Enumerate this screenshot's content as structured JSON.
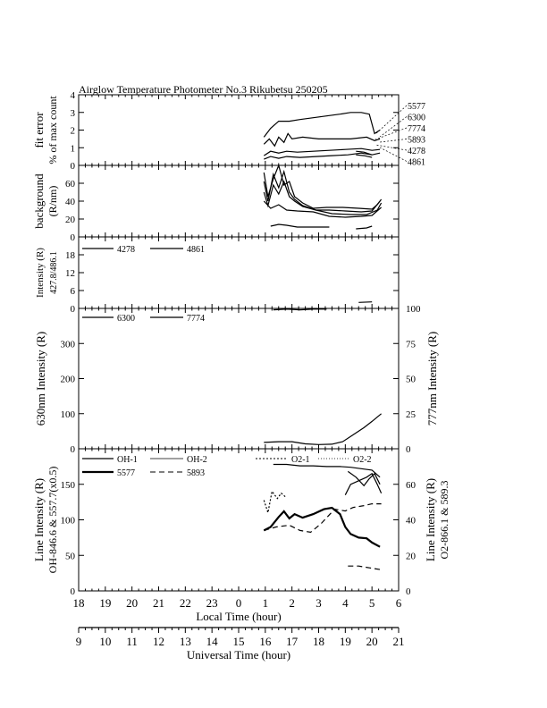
{
  "title": "Airglow Temperature Photometer No.3  Rikubetsu    250205",
  "x_local": {
    "label": "Local Time (hour)",
    "ticks": [
      "18",
      "19",
      "20",
      "21",
      "22",
      "23",
      "0",
      "1",
      "2",
      "3",
      "4",
      "5",
      "6"
    ]
  },
  "x_ut": {
    "label": "Universal Time (hour)",
    "ticks": [
      "9",
      "10",
      "11",
      "12",
      "13",
      "14",
      "15",
      "16",
      "17",
      "18",
      "19",
      "20",
      "21"
    ]
  },
  "chart_data": [
    {
      "id": "fit_error",
      "type": "line",
      "ylabel": "fit error",
      "ylabel2": "% of max count",
      "ylim": [
        0,
        4
      ],
      "yticks": [
        0,
        1,
        2,
        3,
        4
      ],
      "x_units": "Local Time (hour, 0-6 = 24-30)",
      "legend": [
        "5577",
        "6300",
        "7774",
        "5893",
        "4278",
        "4861"
      ],
      "series": [
        {
          "name": "5577",
          "points": [
            [
              0.95,
              1.6
            ],
            [
              1.2,
              2.1
            ],
            [
              1.5,
              2.5
            ],
            [
              1.9,
              2.5
            ],
            [
              2.3,
              2.6
            ],
            [
              2.8,
              2.7
            ],
            [
              3.3,
              2.8
            ],
            [
              3.8,
              2.9
            ],
            [
              4.2,
              3.0
            ],
            [
              4.6,
              3.0
            ],
            [
              4.9,
              2.9
            ],
            [
              5.1,
              1.8
            ],
            [
              5.3,
              2.0
            ]
          ]
        },
        {
          "name": "6300",
          "points": [
            [
              0.95,
              1.2
            ],
            [
              1.15,
              1.5
            ],
            [
              1.35,
              1.1
            ],
            [
              1.5,
              1.6
            ],
            [
              1.7,
              1.3
            ],
            [
              1.85,
              1.8
            ],
            [
              2.0,
              1.5
            ],
            [
              2.4,
              1.6
            ],
            [
              3.0,
              1.5
            ],
            [
              3.6,
              1.5
            ],
            [
              4.2,
              1.5
            ],
            [
              4.8,
              1.6
            ],
            [
              5.1,
              1.4
            ],
            [
              5.3,
              1.5
            ]
          ]
        },
        {
          "name": "7774",
          "points": [
            [
              0.95,
              0.55
            ],
            [
              1.2,
              0.8
            ],
            [
              1.5,
              0.7
            ],
            [
              1.8,
              0.8
            ],
            [
              2.2,
              0.75
            ],
            [
              2.8,
              0.8
            ],
            [
              3.4,
              0.85
            ],
            [
              4.0,
              0.9
            ],
            [
              4.6,
              0.95
            ],
            [
              5.0,
              0.85
            ],
            [
              5.3,
              0.9
            ]
          ]
        },
        {
          "name": "5893",
          "points": [
            [
              0.95,
              0.35
            ],
            [
              1.2,
              0.5
            ],
            [
              1.5,
              0.4
            ],
            [
              1.8,
              0.5
            ],
            [
              2.3,
              0.45
            ],
            [
              2.9,
              0.5
            ],
            [
              3.5,
              0.55
            ],
            [
              4.1,
              0.6
            ],
            [
              4.6,
              0.7
            ],
            [
              5.0,
              0.6
            ],
            [
              5.3,
              0.7
            ]
          ]
        },
        {
          "name": "4278",
          "points": [
            [
              4.4,
              0.8
            ],
            [
              4.7,
              0.75
            ],
            [
              5.0,
              0.6
            ]
          ]
        },
        {
          "name": "4861",
          "points": [
            [
              4.4,
              0.6
            ],
            [
              4.7,
              0.55
            ],
            [
              5.0,
              0.45
            ]
          ]
        }
      ]
    },
    {
      "id": "background",
      "type": "line",
      "ylabel": "background",
      "ylabel2": "(R/nm)",
      "ylim": [
        0,
        80
      ],
      "yticks": [
        0,
        20,
        40,
        60
      ],
      "series": [
        {
          "name": "5577",
          "points": [
            [
              0.95,
              72
            ],
            [
              1.1,
              45
            ],
            [
              1.3,
              65
            ],
            [
              1.5,
              80
            ],
            [
              1.7,
              58
            ],
            [
              1.9,
              62
            ],
            [
              2.1,
              45
            ],
            [
              2.4,
              38
            ],
            [
              2.8,
              32
            ],
            [
              3.3,
              33
            ],
            [
              3.9,
              33
            ],
            [
              4.5,
              32
            ],
            [
              5.0,
              31
            ],
            [
              5.2,
              36
            ],
            [
              5.35,
              42
            ]
          ]
        },
        {
          "name": "6300",
          "points": [
            [
              0.95,
              62
            ],
            [
              1.1,
              40
            ],
            [
              1.3,
              70
            ],
            [
              1.5,
              55
            ],
            [
              1.7,
              73
            ],
            [
              1.9,
              50
            ],
            [
              2.1,
              42
            ],
            [
              2.4,
              35
            ],
            [
              2.9,
              30
            ],
            [
              3.4,
              30
            ],
            [
              4.0,
              29
            ],
            [
              4.6,
              28
            ],
            [
              5.0,
              29
            ],
            [
              5.3,
              40
            ]
          ]
        },
        {
          "name": "7774",
          "points": [
            [
              0.95,
              50
            ],
            [
              1.1,
              35
            ],
            [
              1.3,
              58
            ],
            [
              1.5,
              48
            ],
            [
              1.7,
              62
            ],
            [
              1.9,
              45
            ],
            [
              2.1,
              40
            ],
            [
              2.4,
              34
            ],
            [
              2.9,
              30
            ],
            [
              3.5,
              26
            ],
            [
              4.2,
              25
            ],
            [
              4.8,
              25
            ],
            [
              5.2,
              30
            ],
            [
              5.35,
              38
            ]
          ]
        },
        {
          "name": "5893",
          "points": [
            [
              0.95,
              40
            ],
            [
              1.2,
              32
            ],
            [
              1.5,
              36
            ],
            [
              1.8,
              30
            ],
            [
              2.2,
              29
            ],
            [
              2.8,
              28
            ],
            [
              3.4,
              23
            ],
            [
              4.0,
              22
            ],
            [
              4.6,
              23
            ],
            [
              5.0,
              24
            ],
            [
              5.35,
              33
            ]
          ]
        },
        {
          "name": "4278",
          "points": [
            [
              1.2,
              12
            ],
            [
              1.5,
              14
            ],
            [
              1.8,
              13
            ],
            [
              2.2,
              11
            ],
            [
              2.8,
              11
            ],
            [
              3.4,
              11
            ]
          ]
        },
        {
          "name": "4861",
          "points": [
            [
              4.4,
              9
            ],
            [
              4.8,
              10
            ],
            [
              5.0,
              12
            ]
          ]
        }
      ]
    },
    {
      "id": "blue_intensity",
      "type": "line",
      "ylabel": "Intensity (R)",
      "ylabel2": "427.8/486.1",
      "ylim": [
        0,
        24
      ],
      "yticks": [
        0,
        6,
        12,
        18
      ],
      "legend": [
        "4278",
        "4861"
      ],
      "series": [
        {
          "name": "4278",
          "points": []
        },
        {
          "name": "4861",
          "points": [
            [
              4.5,
              2.0
            ],
            [
              5.0,
              2.2
            ]
          ]
        }
      ]
    },
    {
      "id": "red_intensity",
      "type": "line",
      "ylabel": "630nm Intensity (R)",
      "ylabel_right": "777nm Intensity (R)",
      "ylim": [
        0,
        400
      ],
      "yticks": [
        0,
        100,
        200,
        300
      ],
      "ylim_right": [
        0,
        100
      ],
      "yticks_right": [
        0,
        25,
        50,
        75,
        100
      ],
      "legend": [
        "6300",
        "7774"
      ],
      "series": [
        {
          "name": "6300",
          "points": [
            [
              0.95,
              18
            ],
            [
              1.5,
              20
            ],
            [
              2.0,
              20
            ],
            [
              2.5,
              14
            ],
            [
              3.0,
              12
            ],
            [
              3.5,
              13
            ],
            [
              3.9,
              20
            ],
            [
              4.3,
              40
            ],
            [
              4.7,
              60
            ],
            [
              5.0,
              78
            ],
            [
              5.35,
              100
            ]
          ]
        },
        {
          "name": "7774",
          "axis": "right",
          "points": [
            [
              1.3,
              99
            ],
            [
              1.8,
              99.5
            ],
            [
              2.3,
              99
            ],
            [
              2.8,
              99.5
            ],
            [
              3.3,
              99.5
            ]
          ]
        }
      ]
    },
    {
      "id": "line_intensity",
      "type": "line",
      "ylabel": "Line Intensity (R)",
      "ylabel2": "OH-846.6 & 557.7(x0.5)",
      "ylabel_right": "Line Intensity (R)",
      "ylabel_right2": "O2-866.1 & 589.3",
      "ylim": [
        0,
        200
      ],
      "yticks": [
        0,
        50,
        100,
        150
      ],
      "ylim_right": [
        0,
        80
      ],
      "yticks_right": [
        0,
        20,
        40,
        60
      ],
      "legend": [
        "OH-1",
        "OH-2",
        "O2-1",
        "O2-2",
        "5577",
        "5893"
      ],
      "series": [
        {
          "name": "OH-1",
          "points": [
            [
              1.3,
              178
            ],
            [
              1.8,
              178
            ],
            [
              2.3,
              176
            ],
            [
              2.8,
              176
            ],
            [
              3.3,
              175
            ],
            [
              3.8,
              175
            ],
            [
              4.2,
              174
            ],
            [
              4.6,
              172
            ],
            [
              5.0,
              170
            ],
            [
              5.3,
              160
            ]
          ]
        },
        {
          "name": "OH-2",
          "points": [
            [
              4.1,
              168
            ],
            [
              4.4,
              160
            ],
            [
              4.7,
              148
            ],
            [
              4.9,
              158
            ],
            [
              5.1,
              165
            ],
            [
              5.3,
              150
            ]
          ]
        },
        {
          "name": "O2-1",
          "axis": "right",
          "points": [
            [
              0.95,
              51
            ],
            [
              1.1,
              44
            ],
            [
              1.25,
              56
            ],
            [
              1.45,
              52
            ],
            [
              1.6,
              55
            ],
            [
              1.75,
              53
            ]
          ]
        },
        {
          "name": "O2-2",
          "axis": "right",
          "points": [
            [
              4.0,
              54
            ],
            [
              4.2,
              60
            ],
            [
              4.5,
              62
            ],
            [
              4.8,
              64
            ],
            [
              5.0,
              66
            ],
            [
              5.2,
              60
            ],
            [
              5.35,
              55
            ]
          ]
        },
        {
          "name": "5577",
          "width": 2.2,
          "points": [
            [
              0.95,
              85
            ],
            [
              1.2,
              90
            ],
            [
              1.5,
              104
            ],
            [
              1.7,
              112
            ],
            [
              1.9,
              102
            ],
            [
              2.1,
              108
            ],
            [
              2.4,
              103
            ],
            [
              2.8,
              108
            ],
            [
              3.2,
              115
            ],
            [
              3.5,
              117
            ],
            [
              3.8,
              108
            ],
            [
              4.0,
              90
            ],
            [
              4.2,
              80
            ],
            [
              4.5,
              75
            ],
            [
              4.8,
              74
            ],
            [
              5.0,
              68
            ],
            [
              5.3,
              62
            ]
          ]
        },
        {
          "name": "5893",
          "dash": "6 4",
          "axis": "right",
          "points": [
            [
              0.95,
              34
            ],
            [
              1.4,
              36
            ],
            [
              1.9,
              37
            ],
            [
              2.3,
              34
            ],
            [
              2.7,
              33
            ],
            [
              3.1,
              38
            ],
            [
              3.6,
              46
            ],
            [
              4.0,
              45
            ],
            [
              4.3,
              47
            ],
            [
              4.7,
              48
            ],
            [
              5.0,
              49
            ],
            [
              5.35,
              49
            ]
          ]
        },
        {
          "name": "5893_low",
          "dash": "6 4",
          "axis": "right",
          "points": [
            [
              4.1,
              14
            ],
            [
              4.5,
              14
            ],
            [
              4.9,
              13
            ],
            [
              5.3,
              12
            ]
          ]
        }
      ]
    }
  ]
}
